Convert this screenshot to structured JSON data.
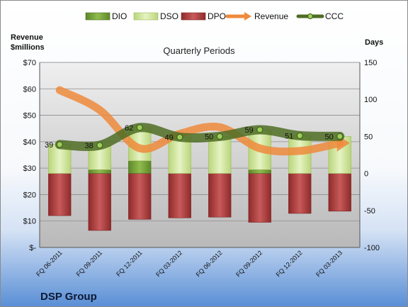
{
  "chart_data": {
    "type": "bar",
    "title": "Quarterly Periods",
    "company": "DSP Group",
    "left_axis": {
      "label_line1": "Revenue",
      "label_line2": "$millions",
      "ylim": [
        0,
        70
      ],
      "ticks": [
        0,
        10,
        20,
        30,
        40,
        50,
        60,
        70
      ],
      "tick_labels": [
        "$-",
        "$10",
        "$20",
        "$30",
        "$40",
        "$50",
        "$60",
        "$70"
      ]
    },
    "right_axis": {
      "label": "Days",
      "ylim": [
        -100,
        150
      ],
      "ticks": [
        -100,
        -50,
        0,
        50,
        100,
        150
      ],
      "tick_labels": [
        "-100",
        "-50",
        "0",
        "50",
        "100",
        "150"
      ]
    },
    "categories": [
      "FQ 06-2011",
      "FQ 09-2011",
      "FQ 12-2011",
      "FQ 03-2012",
      "FQ 06-2012",
      "FQ 09-2012",
      "FQ 12-2012",
      "FQ 03-2013"
    ],
    "series": [
      {
        "name": "DIO",
        "type": "stacked-bar",
        "axis": "right",
        "color": "#7aa23a",
        "values": [
          0,
          5,
          17,
          0,
          0,
          5,
          0,
          0
        ]
      },
      {
        "name": "DSO",
        "type": "stacked-bar",
        "axis": "right",
        "color": "#d5e9a6",
        "values": [
          39,
          33,
          45,
          49,
          50,
          54,
          51,
          50
        ]
      },
      {
        "name": "DPO",
        "type": "stacked-bar",
        "axis": "right",
        "color": "#b94545",
        "values": [
          57,
          77,
          62,
          60,
          59,
          66,
          54,
          51
        ]
      },
      {
        "name": "Revenue",
        "type": "line",
        "axis": "left",
        "color": "#ef8a3c",
        "values": [
          59.5,
          52,
          37.5,
          43,
          45.5,
          37.5,
          36.5,
          39.5
        ]
      },
      {
        "name": "CCC",
        "type": "line",
        "axis": "right",
        "color": "#6e8b3d",
        "values": [
          39,
          38,
          62,
          49,
          50,
          59,
          51,
          50
        ],
        "labels": [
          "39",
          "38",
          "62",
          "49",
          "50",
          "59",
          "51",
          "50"
        ]
      }
    ],
    "legend": {
      "placement": "top",
      "items": [
        "DIO",
        "DSO",
        "DPO",
        "Revenue",
        "CCC"
      ]
    },
    "grid": true
  }
}
